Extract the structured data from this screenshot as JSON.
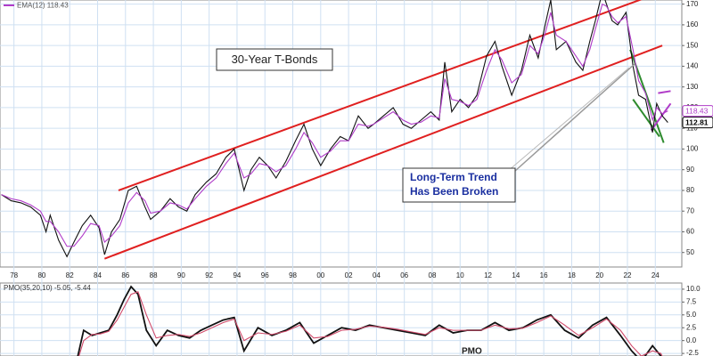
{
  "chart_data": [
    {
      "type": "line",
      "title": "30-Year T-Bonds",
      "annotation": [
        "Long-Term Trend",
        "Has Been Broken"
      ],
      "legend_text": "EMA(12) 118.43",
      "x": [
        1977.1,
        1977.8,
        1978.5,
        1979.2,
        1979.9,
        1980.3,
        1980.6,
        1981.2,
        1981.8,
        1982.3,
        1982.9,
        1983.5,
        1984.1,
        1984.5,
        1985,
        1985.6,
        1986.2,
        1986.8,
        1987.4,
        1987.8,
        1988.5,
        1989.2,
        1989.8,
        1990.4,
        1991,
        1991.8,
        1992.5,
        1993.2,
        1993.8,
        1994.5,
        1995,
        1995.6,
        1996.2,
        1996.8,
        1997.5,
        1998.2,
        1998.8,
        1999.4,
        2000,
        2000.7,
        2001.4,
        2002,
        2002.7,
        2003.4,
        2003.8,
        2004.5,
        2005.2,
        2005.9,
        2006.5,
        2007.2,
        2007.9,
        2008.5,
        2008.9,
        2009.4,
        2010,
        2010.6,
        2011.2,
        2011.9,
        2012.5,
        2013,
        2013.7,
        2014.4,
        2015,
        2015.6,
        2016.1,
        2016.5,
        2016.9,
        2017.6,
        2018.3,
        2018.8,
        2019.3,
        2019.7,
        2020.2,
        2020.5,
        2020.9,
        2021.3,
        2021.9,
        2022.4,
        2022.8,
        2023.3,
        2023.8,
        2024.1,
        2024.5,
        2024.9
      ],
      "series": [
        {
          "name": "Price",
          "color": "#111111",
          "last_value": 112.81,
          "values": [
            78,
            75,
            74,
            72,
            68,
            60,
            68,
            56,
            48,
            55,
            63,
            68,
            62,
            49,
            60,
            66,
            80,
            82,
            72,
            66,
            70,
            76,
            72,
            70,
            78,
            84,
            88,
            96,
            100,
            80,
            90,
            96,
            92,
            86,
            94,
            104,
            112,
            100,
            92,
            100,
            106,
            104,
            116,
            110,
            112,
            116,
            120,
            112,
            110,
            114,
            118,
            114,
            142,
            118,
            124,
            120,
            126,
            145,
            152,
            140,
            126,
            138,
            155,
            144,
            160,
            172,
            148,
            152,
            142,
            138,
            152,
            162,
            176,
            170,
            162,
            160,
            166,
            140,
            126,
            124,
            108,
            122,
            116,
            112.81
          ]
        },
        {
          "name": "EMA(12)",
          "color": "#b03cc8",
          "last_value": 118.43,
          "values": [
            78,
            76,
            75,
            73,
            70,
            65,
            65,
            60,
            53,
            53,
            58,
            64,
            63,
            55,
            58,
            63,
            74,
            79,
            75,
            69,
            70,
            74,
            73,
            71,
            76,
            82,
            86,
            93,
            98,
            86,
            88,
            93,
            92,
            89,
            92,
            100,
            108,
            103,
            96,
            99,
            104,
            104,
            112,
            111,
            112,
            115,
            118,
            114,
            112,
            113,
            116,
            115,
            134,
            124,
            123,
            121,
            124,
            138,
            148,
            143,
            132,
            136,
            150,
            146,
            156,
            166,
            155,
            152,
            145,
            140,
            148,
            158,
            170,
            169,
            164,
            161,
            164,
            148,
            133,
            127,
            114,
            120,
            117,
            118.43
          ]
        }
      ],
      "trendlines": [
        {
          "color": "#e02020",
          "x": [
            1985.5,
            2024.5
          ],
          "y": [
            80,
            176
          ]
        },
        {
          "color": "#e02020",
          "x": [
            1984.5,
            2024.5
          ],
          "y": [
            47,
            150
          ]
        },
        {
          "color": "#2e8b2e",
          "x": [
            2022.2,
            2024.6
          ],
          "y": [
            148,
            103
          ]
        },
        {
          "color": "#2e8b2e",
          "x": [
            2022.4,
            2024.3
          ],
          "y": [
            124,
            106
          ]
        },
        {
          "color": "#b03cc8",
          "x": [
            2023.7,
            2025.1
          ],
          "y": [
            109,
            122
          ]
        },
        {
          "color": "#b03cc8",
          "x": [
            2024.2,
            2025.1
          ],
          "y": [
            127,
            128
          ]
        }
      ],
      "xlim": [
        1977,
        2025.9
      ],
      "xticks": [
        {
          "value": 1978,
          "label": "78"
        },
        {
          "value": 1980,
          "label": "80"
        },
        {
          "value": 1982,
          "label": "82"
        },
        {
          "value": 1984,
          "label": "84"
        },
        {
          "value": 1986,
          "label": "86"
        },
        {
          "value": 1988,
          "label": "88"
        },
        {
          "value": 1990,
          "label": "90"
        },
        {
          "value": 1992,
          "label": "92"
        },
        {
          "value": 1994,
          "label": "94"
        },
        {
          "value": 1996,
          "label": "96"
        },
        {
          "value": 1998,
          "label": "98"
        },
        {
          "value": 2000,
          "label": "00"
        },
        {
          "value": 2002,
          "label": "02"
        },
        {
          "value": 2004,
          "label": "04"
        },
        {
          "value": 2006,
          "label": "06"
        },
        {
          "value": 2008,
          "label": "08"
        },
        {
          "value": 2010,
          "label": "10"
        },
        {
          "value": 2012,
          "label": "12"
        },
        {
          "value": 2014,
          "label": "14"
        },
        {
          "value": 2016,
          "label": "16"
        },
        {
          "value": 2018,
          "label": "18"
        },
        {
          "value": 2020,
          "label": "20"
        },
        {
          "value": 2022,
          "label": "22"
        },
        {
          "value": 2024,
          "label": "24"
        }
      ],
      "ylim": [
        43,
        172
      ],
      "yticks": [
        50,
        60,
        70,
        80,
        90,
        100,
        110,
        120,
        130,
        140,
        150,
        160,
        170
      ],
      "grid": true
    },
    {
      "type": "line",
      "panel_label": "PMO(35,20,10) -5.05, -5.44",
      "annotation": "PMO",
      "x": [
        1982.5,
        1983,
        1983.6,
        1984.2,
        1984.8,
        1985.4,
        1985.9,
        1986.4,
        1986.9,
        1987.5,
        1988.2,
        1989,
        1989.8,
        1990.6,
        1991.4,
        1992.2,
        1993,
        1993.8,
        1994.5,
        1995.5,
        1996.5,
        1997.5,
        1998.5,
        1999.5,
        2000.5,
        2001.5,
        2002.5,
        2003.5,
        2004.5,
        2005.5,
        2006.5,
        2007.5,
        2008.5,
        2009.5,
        2010.5,
        2011.5,
        2012.5,
        2013.5,
        2014.5,
        2015.5,
        2016.5,
        2017.5,
        2018.5,
        2019.5,
        2020.5,
        2021.5,
        2022.3,
        2023,
        2023.8,
        2024.4,
        2024.9
      ],
      "series": [
        {
          "name": "PMO",
          "color": "#111111",
          "values": [
            -4,
            2,
            1,
            1.5,
            2,
            5,
            8,
            10.5,
            9,
            2,
            -1,
            2,
            1,
            0.5,
            2,
            3,
            4,
            4.5,
            -2,
            2.5,
            1,
            2,
            3.5,
            -0.5,
            1,
            2.5,
            2,
            3,
            2.5,
            2,
            1.5,
            1,
            3,
            1.5,
            2,
            2,
            3.5,
            2,
            2.5,
            4,
            5,
            2,
            0.5,
            3,
            4.5,
            1,
            -2,
            -4,
            -1,
            -3,
            -5.05
          ]
        },
        {
          "name": "Signal",
          "color": "#d04a6a",
          "values": [
            -4.5,
            0,
            1.2,
            1.3,
            1.8,
            4,
            6.5,
            9,
            9.5,
            5,
            0.5,
            1,
            1.2,
            0.8,
            1.5,
            2.5,
            3.5,
            4.2,
            0,
            1.5,
            1.2,
            1.8,
            3,
            0.5,
            0.8,
            2,
            2.2,
            2.8,
            2.6,
            2.2,
            1.7,
            1.2,
            2.5,
            2,
            2,
            2,
            3,
            2.3,
            2.4,
            3.5,
            4.8,
            3,
            1,
            2.5,
            4.2,
            2,
            -1,
            -3,
            -2,
            -2.5,
            -5.44
          ]
        }
      ],
      "xlim": [
        1977,
        2025.9
      ],
      "ylim": [
        -3,
        11.2
      ],
      "yticks": [
        {
          "value": 10,
          "label": "10.0"
        },
        {
          "value": 7.5,
          "label": "7.5"
        },
        {
          "value": 5,
          "label": "5.0"
        },
        {
          "value": 2.5,
          "label": "2.5"
        },
        {
          "value": 0,
          "label": "0.0"
        },
        {
          "value": -2.5,
          "label": "-2.5"
        }
      ],
      "grid": true
    }
  ]
}
